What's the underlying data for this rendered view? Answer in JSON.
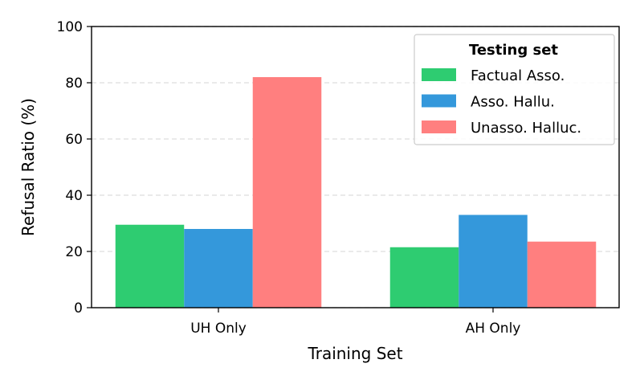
{
  "chart_data": {
    "type": "bar",
    "title": "",
    "xlabel": "Training Set",
    "ylabel": "Refusal Ratio (%)",
    "categories": [
      "UH Only",
      "AH Only"
    ],
    "series": [
      {
        "name": "Factual Asso.",
        "values": [
          29.5,
          21.5
        ],
        "color": "#2ecc71"
      },
      {
        "name": "Asso. Hallu.",
        "values": [
          28.0,
          33.0
        ],
        "color": "#3498db"
      },
      {
        "name": "Unasso. Halluc.",
        "values": [
          82.0,
          23.5
        ],
        "color": "#ff7f7f"
      }
    ],
    "ylim": [
      0,
      100
    ],
    "yticks": [
      "0",
      "20",
      "40",
      "60",
      "80",
      "100"
    ],
    "grid": "horizontal dashed",
    "legend": {
      "title": "Testing set",
      "position": "top-right"
    }
  }
}
